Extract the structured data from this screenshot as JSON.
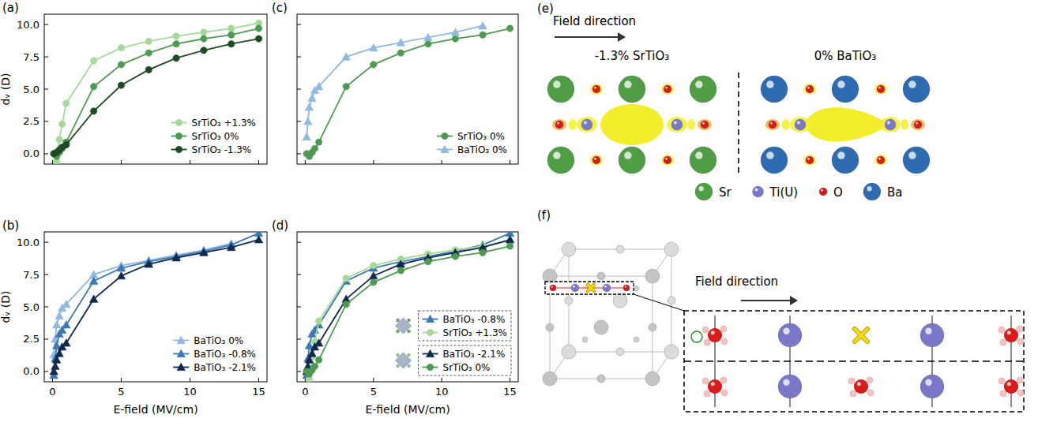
{
  "chart_data": [
    {
      "type": "line",
      "panel": "(a)",
      "y_label": "dᵥ (D)",
      "xlim": [
        -0.6,
        15.6
      ],
      "ylim": [
        -0.8,
        10.8
      ],
      "xticks": [
        0,
        5,
        10,
        15
      ],
      "yticks": [
        {
          "value": 0,
          "label": "0.0"
        },
        2.5,
        {
          "value": 5,
          "label": "5.0"
        },
        7.5,
        {
          "value": 10,
          "label": "10.0"
        }
      ],
      "tick_labels": "y",
      "grid": false,
      "legend": "lower right",
      "series": [
        {
          "name": "SrTiO₃ +1.3%",
          "color": "#a6d89a",
          "marker": "circle",
          "x": [
            0.1,
            0.3,
            0.5,
            0.7,
            1,
            3,
            5,
            7,
            9,
            11,
            13,
            15
          ],
          "values": [
            0.0,
            -0.6,
            1.1,
            2.3,
            3.9,
            7.2,
            8.2,
            8.7,
            9.1,
            9.4,
            9.7,
            10.1
          ]
        },
        {
          "name": "SrTiO₃ 0%",
          "color": "#4f9a52",
          "marker": "circle",
          "x": [
            0.1,
            0.3,
            0.5,
            0.7,
            1,
            3,
            5,
            7,
            9,
            11,
            13,
            15
          ],
          "values": [
            0.0,
            -0.2,
            0.1,
            0.4,
            0.9,
            5.2,
            6.9,
            7.8,
            8.5,
            8.9,
            9.2,
            9.7
          ]
        },
        {
          "name": "SrTiO₃ -1.3%",
          "color": "#1e4a24",
          "marker": "circle",
          "x": [
            0.1,
            0.3,
            0.5,
            0.7,
            1,
            3,
            5,
            7,
            9,
            11,
            13,
            15
          ],
          "values": [
            0.0,
            0.1,
            0.3,
            0.5,
            0.7,
            3.3,
            5.3,
            6.5,
            7.4,
            8.0,
            8.5,
            8.9
          ]
        }
      ]
    },
    {
      "type": "line",
      "panel": "(b)",
      "x_label": "E-field (MV/cm)",
      "y_label": "dᵥ (D)",
      "xlim": [
        -0.6,
        15.6
      ],
      "ylim": [
        -0.8,
        10.8
      ],
      "xticks": [
        0,
        5,
        10,
        15
      ],
      "yticks": [
        {
          "value": 0,
          "label": "0.0"
        },
        2.5,
        {
          "value": 5,
          "label": "5.0"
        },
        7.5,
        {
          "value": 10,
          "label": "10.0"
        }
      ],
      "grid": false,
      "legend": "lower right",
      "series": [
        {
          "name": "BaTiO₃ 0%",
          "color": "#92b8df",
          "marker": "triangle",
          "x": [
            0.1,
            0.2,
            0.3,
            0.5,
            0.7,
            1,
            3,
            5,
            7,
            9,
            11,
            13
          ],
          "values": [
            1.3,
            2.5,
            3.6,
            4.3,
            4.9,
            5.2,
            7.5,
            8.2,
            8.6,
            9.0,
            9.4,
            9.9
          ]
        },
        {
          "name": "BaTiO₃ -0.8%",
          "color": "#3b78b4",
          "marker": "triangle",
          "x": [
            0.1,
            0.2,
            0.3,
            0.5,
            0.7,
            1,
            3,
            5,
            7,
            9,
            11,
            13,
            15
          ],
          "values": [
            -0.3,
            1.0,
            2.0,
            2.9,
            3.2,
            3.6,
            7.0,
            8.0,
            8.5,
            8.9,
            9.3,
            9.8,
            10.7
          ]
        },
        {
          "name": "BaTiO₃ -2.1%",
          "color": "#10294c",
          "marker": "triangle",
          "x": [
            0.1,
            0.2,
            0.3,
            0.5,
            0.7,
            1,
            3,
            5,
            7,
            9,
            11,
            13,
            15
          ],
          "values": [
            0.0,
            0.4,
            0.9,
            1.4,
            1.9,
            2.2,
            5.6,
            7.4,
            8.3,
            8.8,
            9.2,
            9.6,
            10.2
          ]
        }
      ]
    },
    {
      "type": "line",
      "panel": "(c)",
      "xlim": [
        -0.6,
        15.6
      ],
      "ylim": [
        -0.8,
        10.8
      ],
      "xticks": [
        0,
        5,
        10,
        15
      ],
      "yticks": [
        {
          "value": 0,
          "label": "0.0"
        },
        2.5,
        {
          "value": 5,
          "label": "5.0"
        },
        7.5,
        {
          "value": 10,
          "label": "10.0"
        }
      ],
      "tick_labels": false,
      "grid": false,
      "legend": "lower right",
      "series": [
        {
          "name": "SrTiO₃ 0%",
          "color": "#4f9a52",
          "marker": "circle",
          "x": [
            0.1,
            0.3,
            0.5,
            0.7,
            1,
            3,
            5,
            7,
            9,
            11,
            13,
            15
          ],
          "values": [
            0.0,
            -0.2,
            0.1,
            0.4,
            0.9,
            5.2,
            6.9,
            7.8,
            8.5,
            8.9,
            9.2,
            9.7
          ]
        },
        {
          "name": "BaTiO₃ 0%",
          "color": "#92b8df",
          "marker": "triangle",
          "x": [
            0.1,
            0.2,
            0.3,
            0.5,
            0.7,
            1,
            3,
            5,
            7,
            9,
            11,
            13
          ],
          "values": [
            1.3,
            2.5,
            3.6,
            4.3,
            4.9,
            5.2,
            7.5,
            8.2,
            8.6,
            9.0,
            9.4,
            9.9
          ]
        }
      ]
    },
    {
      "type": "line",
      "panel": "(d)",
      "x_label": "E-field (MV/cm)",
      "xlim": [
        -0.6,
        15.6
      ],
      "ylim": [
        -0.8,
        10.8
      ],
      "xticks": [
        0,
        5,
        10,
        15
      ],
      "yticks": [
        {
          "value": 0,
          "label": "0.0"
        },
        2.5,
        {
          "value": 5,
          "label": "5.0"
        },
        7.5,
        {
          "value": 10,
          "label": "10.0"
        }
      ],
      "tick_labels": "x",
      "grid": false,
      "legend": "lower right",
      "series": [
        {
          "name": "BaTiO₃ -0.8%",
          "color": "#3b78b4",
          "marker": "triangle",
          "x": [
            0.1,
            0.2,
            0.3,
            0.5,
            0.7,
            1,
            3,
            5,
            7,
            9,
            11,
            13,
            15
          ],
          "values": [
            -0.3,
            1.0,
            2.0,
            2.9,
            3.2,
            3.6,
            7.0,
            8.0,
            8.5,
            8.9,
            9.3,
            9.8,
            10.7
          ]
        },
        {
          "name": "SrTiO₃ +1.3%",
          "color": "#a6d89a",
          "marker": "circle",
          "x": [
            0.1,
            0.3,
            0.5,
            0.7,
            1,
            3,
            5,
            7,
            9,
            11,
            13,
            15
          ],
          "values": [
            0.0,
            -0.6,
            1.1,
            2.3,
            3.9,
            7.2,
            8.2,
            8.7,
            9.1,
            9.4,
            9.7,
            10.1
          ]
        },
        {
          "name": "BaTiO₃ -2.1%",
          "color": "#10294c",
          "marker": "triangle",
          "x": [
            0.1,
            0.2,
            0.3,
            0.5,
            0.7,
            1,
            3,
            5,
            7,
            9,
            11,
            13,
            15
          ],
          "values": [
            0.0,
            0.4,
            0.9,
            1.4,
            1.9,
            2.2,
            5.6,
            7.4,
            8.3,
            8.8,
            9.2,
            9.6,
            10.2
          ]
        },
        {
          "name": "SrTiO₃ 0%",
          "color": "#4f9a52",
          "marker": "circle",
          "x": [
            0.1,
            0.3,
            0.5,
            0.7,
            1,
            3,
            5,
            7,
            9,
            11,
            13,
            15
          ],
          "values": [
            0.0,
            -0.2,
            0.1,
            0.4,
            0.9,
            5.2,
            6.9,
            7.8,
            8.5,
            8.9,
            9.2,
            9.7
          ]
        }
      ]
    }
  ],
  "diagrams": {
    "e": {
      "panel": "(e)",
      "field_label": "Field direction",
      "structures": [
        {
          "title": "-1.3% SrTiO₃",
          "a_site_color": "#4f9d45"
        },
        {
          "title": "0% BaTiO₃",
          "a_site_color": "#2e6bb0"
        }
      ],
      "legend": [
        {
          "label": "Sr",
          "color": "#4f9d45"
        },
        {
          "label": "Ti(U)",
          "color": "#7b78c9"
        },
        {
          "label": "O",
          "color": "#d81b1b"
        },
        {
          "label": "Ba",
          "color": "#2e6bb0"
        }
      ]
    },
    "f": {
      "panel": "(f)",
      "field_label": "Field direction"
    }
  }
}
